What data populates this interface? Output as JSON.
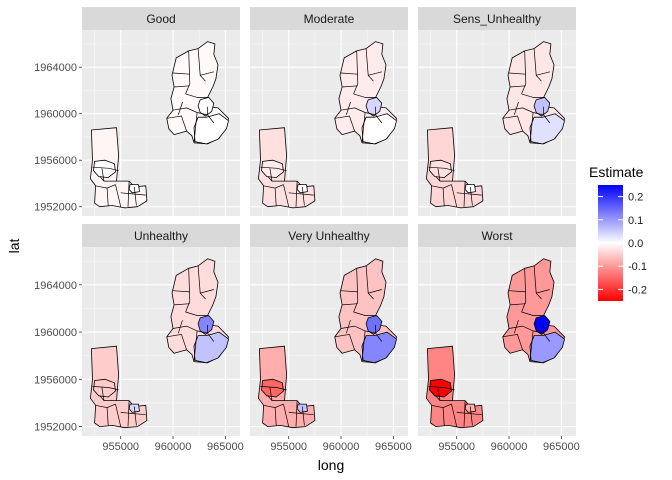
{
  "chart_data": {
    "type": "choropleth-facet",
    "xlabel": "long",
    "ylabel": "lat",
    "x_ticks": [
      955000,
      960000,
      965000
    ],
    "y_ticks": [
      1952000,
      1956000,
      1960000,
      1964000
    ],
    "xlim": [
      951300,
      966400
    ],
    "ylim": [
      1951200,
      1967200
    ],
    "legend": {
      "title": "Estimate",
      "position": "right",
      "ticks": [
        0.2,
        0.1,
        0.0,
        -0.1,
        -0.2
      ],
      "tick_labels": [
        "0.2",
        "0.1",
        "0.0",
        "-0.1",
        "-0.2"
      ],
      "range": [
        -0.25,
        0.25
      ],
      "low_color": "#ff0000",
      "mid_color": "#ffffff",
      "high_color": "#0000ff"
    },
    "grid": true,
    "panel_background": "#ebebeb",
    "strip_background": "#d9d9d9",
    "facets": [
      {
        "label": "Good",
        "west_base": -0.01,
        "north_base": -0.005,
        "focus": [
          0.0,
          0.0,
          0.0,
          0.0
        ]
      },
      {
        "label": "Moderate",
        "west_base": -0.03,
        "north_base": -0.02,
        "focus": [
          0.04,
          0.0,
          -0.02,
          0.0
        ]
      },
      {
        "label": "Sens_Unhealthy",
        "west_base": -0.04,
        "north_base": -0.025,
        "focus": [
          0.06,
          0.03,
          -0.03,
          0.0
        ]
      },
      {
        "label": "Unhealthy",
        "west_base": -0.05,
        "north_base": -0.035,
        "focus": [
          0.12,
          0.06,
          -0.05,
          0.04
        ]
      },
      {
        "label": "Very Unhealthy",
        "west_base": -0.08,
        "north_base": -0.06,
        "focus": [
          0.14,
          0.12,
          -0.15,
          0.06
        ]
      },
      {
        "label": "Worst",
        "west_base": -0.12,
        "north_base": -0.1,
        "focus": [
          0.25,
          0.1,
          -0.25,
          -0.08
        ]
      }
    ]
  }
}
